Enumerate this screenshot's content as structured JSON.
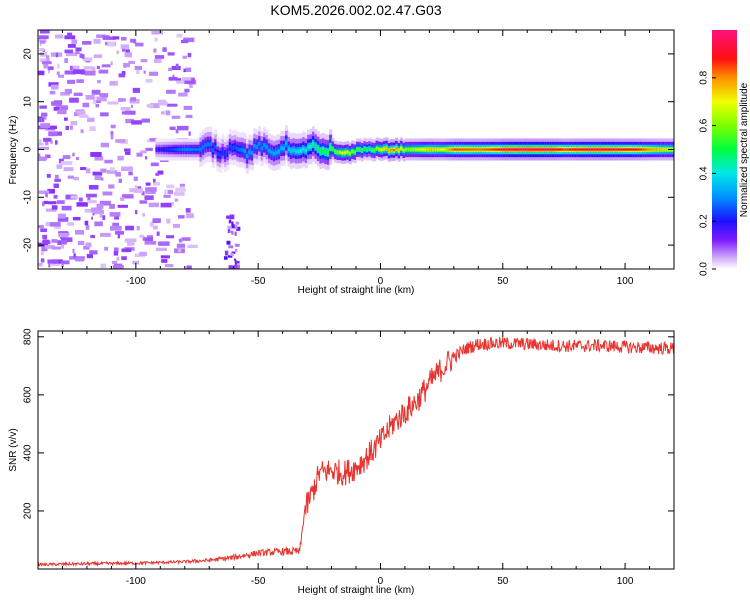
{
  "title": "KOM5.2026.002.02.47.G03",
  "chart_data": [
    {
      "type": "heatmap",
      "xlabel": "Height of straight line (km)",
      "ylabel": "Frequency (Hz)",
      "xlim": [
        -140,
        120
      ],
      "ylim": [
        -25,
        25
      ],
      "xticks": [
        -100,
        -50,
        0,
        50,
        100
      ],
      "xtick_labels": [
        "-100",
        "-50",
        "0",
        "50",
        "100"
      ],
      "yticks": [
        -20,
        -10,
        0,
        10,
        20
      ],
      "ytick_labels": [
        "-20",
        "-10",
        "0",
        "10",
        "20"
      ],
      "colorbar": {
        "label": "Normalized spectral amplitude",
        "range": [
          0,
          1
        ],
        "ticks": [
          0.0,
          0.2,
          0.4,
          0.6,
          0.8
        ],
        "tick_labels": [
          "0.0",
          "0.2",
          "0.4",
          "0.6",
          "0.8"
        ]
      },
      "ridge": {
        "frequency_hz": 0,
        "x_start": -92,
        "x_end": 120,
        "amplitude_profile": [
          [
            -92,
            0.18
          ],
          [
            -80,
            0.3
          ],
          [
            -70,
            0.28
          ],
          [
            -65,
            0.22
          ],
          [
            -60,
            0.25
          ],
          [
            -55,
            0.32
          ],
          [
            -50,
            0.3
          ],
          [
            -40,
            0.35
          ],
          [
            -30,
            0.42
          ],
          [
            -25,
            0.5
          ],
          [
            -20,
            0.55
          ],
          [
            -15,
            0.72
          ],
          [
            -10,
            0.55
          ],
          [
            -5,
            0.5
          ],
          [
            0,
            0.7
          ],
          [
            5,
            0.82
          ],
          [
            10,
            0.62
          ],
          [
            15,
            0.68
          ],
          [
            20,
            0.75
          ],
          [
            25,
            0.7
          ],
          [
            30,
            0.85
          ],
          [
            40,
            0.82
          ],
          [
            48,
            0.88
          ],
          [
            50,
            0.95
          ],
          [
            60,
            0.97
          ],
          [
            70,
            0.95
          ],
          [
            75,
            0.85
          ],
          [
            80,
            0.92
          ],
          [
            90,
            0.95
          ],
          [
            100,
            0.9
          ],
          [
            105,
            0.88
          ],
          [
            110,
            0.78
          ],
          [
            120,
            0.7
          ]
        ]
      }
    },
    {
      "type": "line",
      "xlabel": "Height of straight line (km)",
      "ylabel": "SNR (v/v)",
      "xlim": [
        -140,
        120
      ],
      "ylim": [
        0,
        820
      ],
      "xticks": [
        -100,
        -50,
        0,
        50,
        100
      ],
      "xtick_labels": [
        "-100",
        "-50",
        "0",
        "50",
        "100"
      ],
      "yticks": [
        200,
        400,
        600,
        800
      ],
      "ytick_labels": [
        "200",
        "400",
        "600",
        "800"
      ],
      "color": "#e8332f",
      "series": [
        {
          "name": "SNR",
          "x": [
            -140,
            -120,
            -100,
            -80,
            -70,
            -60,
            -50,
            -40,
            -33,
            -31,
            -28,
            -25,
            -20,
            -15,
            -10,
            -5,
            0,
            5,
            10,
            15,
            20,
            25,
            30,
            35,
            40,
            50,
            60,
            70,
            80,
            90,
            100,
            110,
            120
          ],
          "y": [
            15,
            18,
            20,
            25,
            30,
            40,
            55,
            60,
            60,
            200,
            260,
            330,
            340,
            330,
            350,
            390,
            440,
            500,
            540,
            580,
            640,
            690,
            730,
            760,
            775,
            778,
            775,
            770,
            768,
            770,
            765,
            762,
            760
          ]
        }
      ]
    }
  ]
}
